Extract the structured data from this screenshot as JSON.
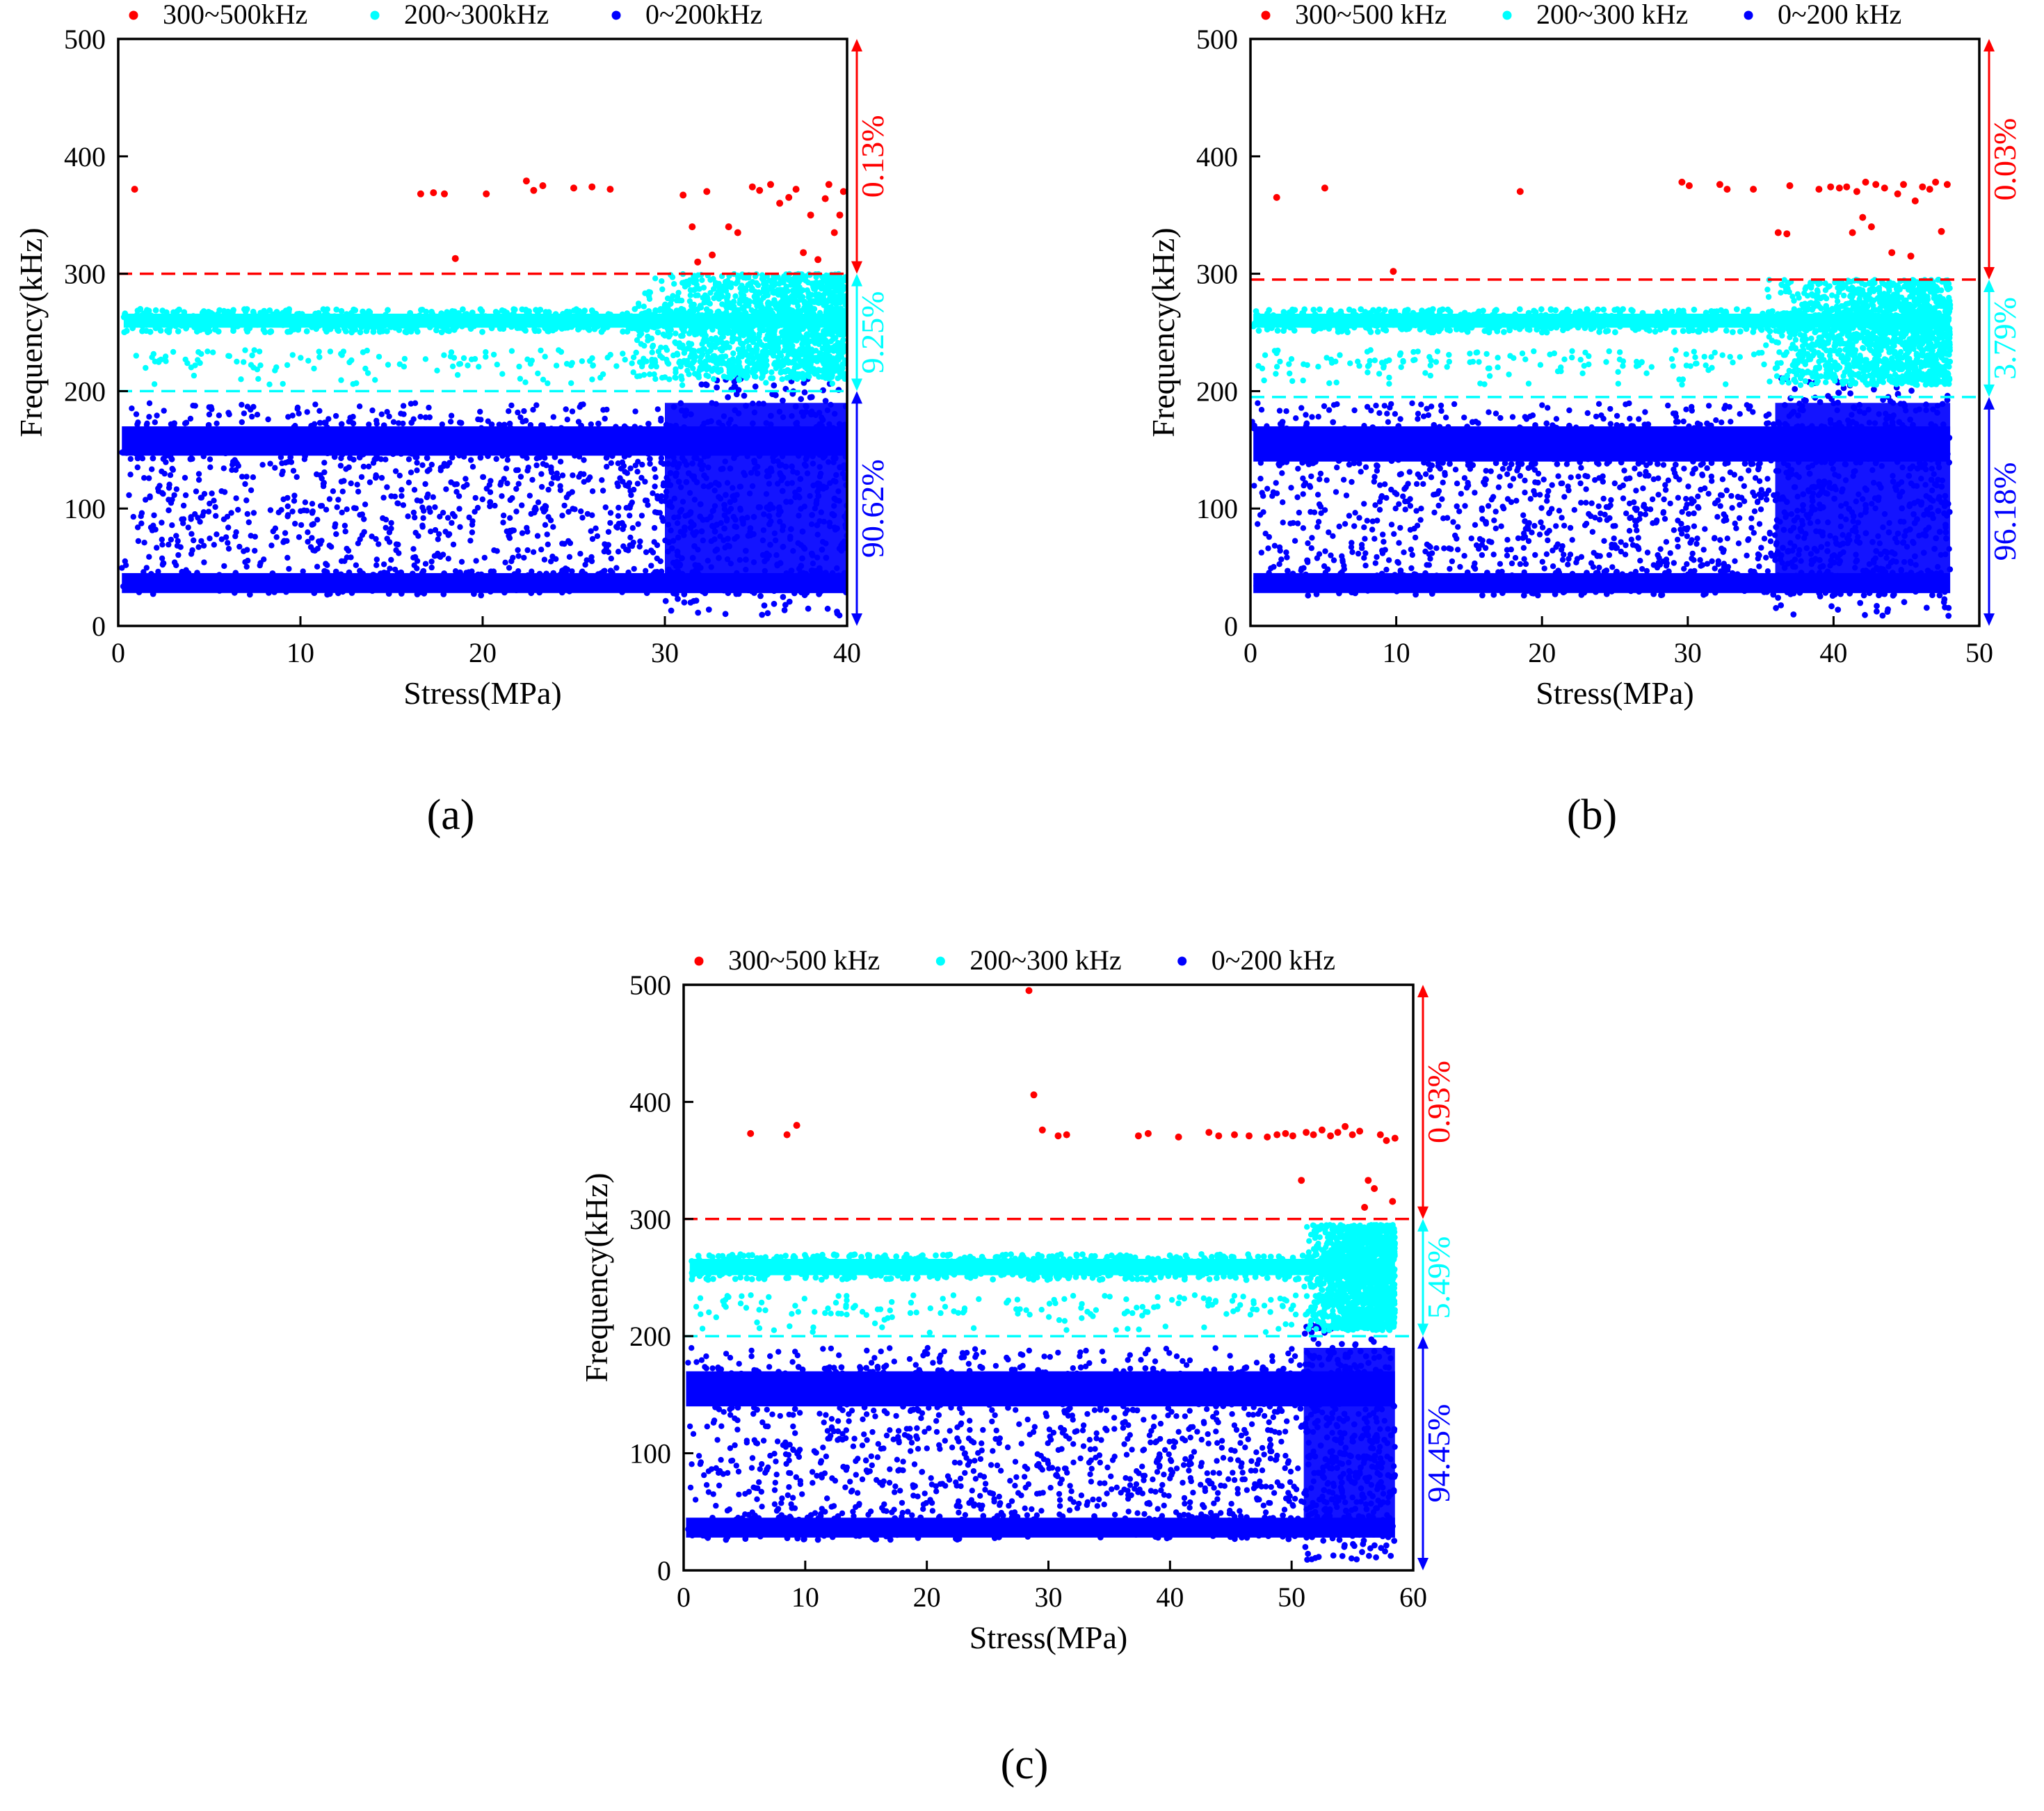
{
  "colors": {
    "high": "#ff0000",
    "mid": "#00ffff",
    "low": "#0000ff",
    "axis": "#000000"
  },
  "chart_data": [
    {
      "type": "scatter",
      "panel_label": "(a)",
      "xlabel": "Stress(MPa)",
      "ylabel": "Frequency(kHz)",
      "xlim": [
        0,
        40
      ],
      "ylim": [
        0,
        500
      ],
      "xticks": [
        "0",
        "10",
        "20",
        "30",
        "40"
      ],
      "yticks": [
        "0",
        "100",
        "200",
        "300",
        "400",
        "500"
      ],
      "legend": [
        "300~500kHz",
        "200~300kHz",
        "0~200kHz"
      ],
      "thresholds": [
        300,
        200
      ],
      "percentages": [
        "0.13%",
        "9.25%",
        "90.62%"
      ],
      "series": [
        {
          "name": "300~500kHz",
          "points": [
            [
              0.9,
              372
            ],
            [
              16.6,
              368
            ],
            [
              17.3,
              369
            ],
            [
              17.9,
              368
            ],
            [
              18.5,
              313
            ],
            [
              20.2,
              368
            ],
            [
              22.4,
              379
            ],
            [
              22.8,
              371
            ],
            [
              23.3,
              375
            ],
            [
              25.0,
              373
            ],
            [
              26.0,
              374
            ],
            [
              27.0,
              372
            ],
            [
              31.0,
              367
            ],
            [
              31.5,
              340
            ],
            [
              31.8,
              310
            ],
            [
              32.3,
              370
            ],
            [
              32.6,
              316
            ],
            [
              33.5,
              340
            ],
            [
              34.0,
              335
            ],
            [
              34.8,
              374
            ],
            [
              35.2,
              371
            ],
            [
              35.8,
              376
            ],
            [
              36.3,
              360
            ],
            [
              36.8,
              365
            ],
            [
              37.2,
              372
            ],
            [
              37.6,
              318
            ],
            [
              38.0,
              350
            ],
            [
              38.4,
              312
            ],
            [
              38.8,
              364
            ],
            [
              39.0,
              376
            ],
            [
              39.3,
              335
            ],
            [
              39.6,
              350
            ],
            [
              39.8,
              370
            ]
          ]
        },
        {
          "name": "200~300kHz",
          "band": [
            [
              0.3,
              40,
              250,
              270
            ],
            [
              0.5,
              40,
              220,
              235
            ],
            [
              28,
              40,
              210,
              300
            ]
          ]
        },
        {
          "name": "0~200kHz",
          "band": [
            [
              0.2,
              40,
              145,
              170
            ],
            [
              0.2,
              40,
              28,
              45
            ],
            [
              0.2,
              40,
              45,
              145
            ],
            [
              30,
              40,
              28,
              190
            ]
          ]
        }
      ]
    },
    {
      "type": "scatter",
      "panel_label": "(b)",
      "xlabel": "Stress(MPa)",
      "ylabel": "Frequency(kHz)",
      "xlim": [
        0,
        50
      ],
      "ylim": [
        0,
        500
      ],
      "xticks": [
        "0",
        "10",
        "20",
        "30",
        "40",
        "50"
      ],
      "yticks": [
        "0",
        "100",
        "200",
        "300",
        "400",
        "500"
      ],
      "legend": [
        "300~500 kHz",
        "200~300 kHz",
        "0~200 kHz"
      ],
      "thresholds": [
        295,
        195
      ],
      "percentages": [
        "0.03%",
        "3.79%",
        "96.18%"
      ],
      "series": [
        {
          "name": "300~500 kHz",
          "points": [
            [
              1.8,
              365
            ],
            [
              5.1,
              373
            ],
            [
              9.8,
              302
            ],
            [
              18.5,
              370
            ],
            [
              29.6,
              378
            ],
            [
              30.1,
              375
            ],
            [
              32.2,
              376
            ],
            [
              32.7,
              372
            ],
            [
              34.5,
              372
            ],
            [
              36.2,
              335
            ],
            [
              36.8,
              334
            ],
            [
              37.0,
              375
            ],
            [
              39.0,
              372
            ],
            [
              39.8,
              374
            ],
            [
              40.4,
              373
            ],
            [
              40.9,
              374
            ],
            [
              41.3,
              335
            ],
            [
              41.6,
              370
            ],
            [
              42.0,
              348
            ],
            [
              42.2,
              378
            ],
            [
              42.6,
              340
            ],
            [
              42.9,
              376
            ],
            [
              43.5,
              373
            ],
            [
              44.0,
              318
            ],
            [
              44.4,
              368
            ],
            [
              44.8,
              376
            ],
            [
              45.3,
              315
            ],
            [
              45.6,
              362
            ],
            [
              46.1,
              374
            ],
            [
              46.6,
              372
            ],
            [
              47.0,
              378
            ],
            [
              47.4,
              336
            ],
            [
              47.8,
              376
            ]
          ]
        },
        {
          "name": "200~300 kHz",
          "band": [
            [
              0.2,
              48,
              250,
              270
            ],
            [
              0.5,
              48,
              220,
              235
            ],
            [
              35,
              48,
              205,
              295
            ]
          ]
        },
        {
          "name": "0~200 kHz",
          "band": [
            [
              0.2,
              48,
              140,
              170
            ],
            [
              0.2,
              48,
              28,
              45
            ],
            [
              0.2,
              48,
              45,
              140
            ],
            [
              36,
              48,
              28,
              190
            ]
          ]
        }
      ]
    },
    {
      "type": "scatter",
      "panel_label": "(c)",
      "xlabel": "Stress(MPa)",
      "ylabel": "Frequency(kHz)",
      "xlim": [
        0,
        60
      ],
      "ylim": [
        0,
        500
      ],
      "xticks": [
        "0",
        "10",
        "20",
        "30",
        "40",
        "50",
        "60"
      ],
      "yticks": [
        "0",
        "100",
        "200",
        "300",
        "400",
        "500"
      ],
      "legend": [
        "300~500 kHz",
        "200~300 kHz",
        "0~200 kHz"
      ],
      "thresholds": [
        300,
        200
      ],
      "percentages": [
        "0.93%",
        "5.49%",
        "94.45%"
      ],
      "series": [
        {
          "name": "300~500 kHz",
          "points": [
            [
              5.5,
              373
            ],
            [
              8.5,
              372
            ],
            [
              9.3,
              380
            ],
            [
              28.4,
              495
            ],
            [
              28.8,
              406
            ],
            [
              29.5,
              376
            ],
            [
              30.8,
              371
            ],
            [
              31.5,
              372
            ],
            [
              37.4,
              371
            ],
            [
              38.2,
              373
            ],
            [
              40.7,
              370
            ],
            [
              43.2,
              374
            ],
            [
              44.0,
              371
            ],
            [
              45.3,
              372
            ],
            [
              46.5,
              371
            ],
            [
              48.0,
              370
            ],
            [
              48.8,
              372
            ],
            [
              49.5,
              373
            ],
            [
              50.1,
              371
            ],
            [
              50.8,
              333
            ],
            [
              51.2,
              374
            ],
            [
              51.8,
              372
            ],
            [
              52.5,
              376
            ],
            [
              53.2,
              371
            ],
            [
              53.8,
              374
            ],
            [
              54.4,
              379
            ],
            [
              55.0,
              372
            ],
            [
              55.6,
              375
            ],
            [
              56.0,
              310
            ],
            [
              56.3,
              333
            ],
            [
              56.8,
              326
            ],
            [
              57.3,
              372
            ],
            [
              57.8,
              367
            ],
            [
              58.3,
              315
            ],
            [
              58.5,
              369
            ]
          ]
        },
        {
          "name": "200~300 kHz",
          "band": [
            [
              0.5,
              58.5,
              248,
              270
            ],
            [
              1,
              58.5,
              218,
              235
            ],
            [
              51,
              58.5,
              205,
              295
            ]
          ]
        },
        {
          "name": "0~200 kHz",
          "band": [
            [
              0.2,
              58.5,
              140,
              170
            ],
            [
              0.2,
              58.5,
              28,
              45
            ],
            [
              0.2,
              58.5,
              45,
              140
            ],
            [
              51,
              58.5,
              28,
              190
            ]
          ]
        }
      ]
    }
  ]
}
